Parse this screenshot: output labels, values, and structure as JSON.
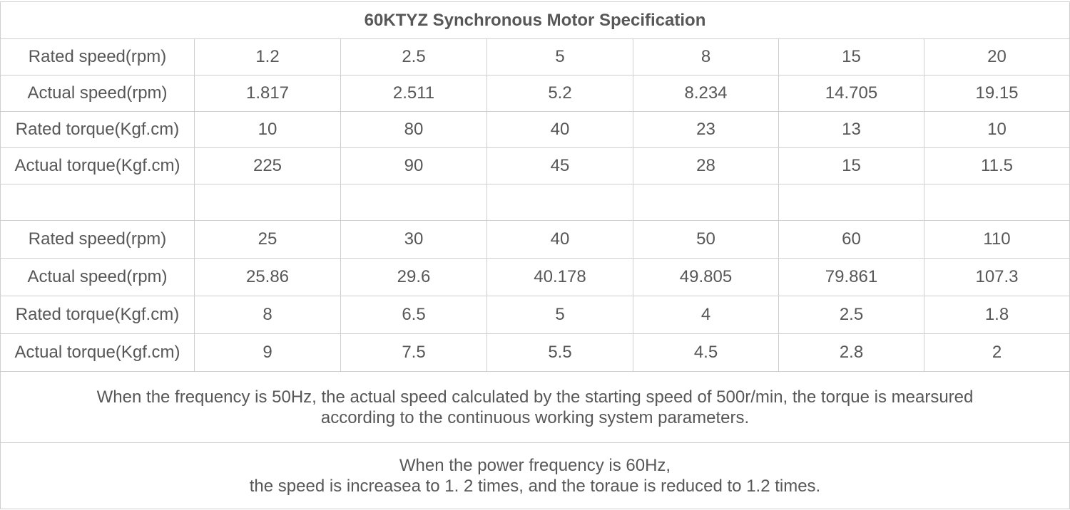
{
  "title": "60KTYZ Synchronous Motor Specification",
  "blocks": [
    {
      "rows": [
        {
          "label": "Rated speed(rpm)",
          "values": [
            "1.2",
            "2.5",
            "5",
            "8",
            "15",
            "20"
          ]
        },
        {
          "label": "Actual speed(rpm)",
          "values": [
            "1.817",
            "2.511",
            "5.2",
            "8.234",
            "14.705",
            "19.15"
          ]
        },
        {
          "label": "Rated torque(Kgf.cm)",
          "values": [
            "10",
            "80",
            "40",
            "23",
            "13",
            "10"
          ]
        },
        {
          "label": "Actual torque(Kgf.cm)",
          "values": [
            "225",
            "90",
            "45",
            "28",
            "15",
            "11.5"
          ]
        }
      ]
    },
    {
      "rows": [
        {
          "label": "Rated speed(rpm)",
          "values": [
            "25",
            "30",
            "40",
            "50",
            "60",
            "110"
          ]
        },
        {
          "label": "Actual speed(rpm)",
          "values": [
            "25.86",
            "29.6",
            "40.178",
            "49.805",
            "79.861",
            "107.3"
          ]
        },
        {
          "label": "Rated torque(Kgf.cm)",
          "values": [
            "8",
            "6.5",
            "5",
            "4",
            "2.5",
            "1.8"
          ]
        },
        {
          "label": "Actual torque(Kgf.cm)",
          "values": [
            "9",
            "7.5",
            "5.5",
            "4.5",
            "2.8",
            "2"
          ]
        }
      ]
    }
  ],
  "notes": [
    {
      "line1": "When the frequency is 50Hz, the actual speed calculated by the starting speed of 500r/min, the torque is mearsured",
      "line2": "according to the continuous working system parameters."
    },
    {
      "line1": "When the power frequency is 60Hz,",
      "line2": "the speed is increasea to 1. 2 times, and the toraue is reduced to 1.2 times."
    }
  ]
}
